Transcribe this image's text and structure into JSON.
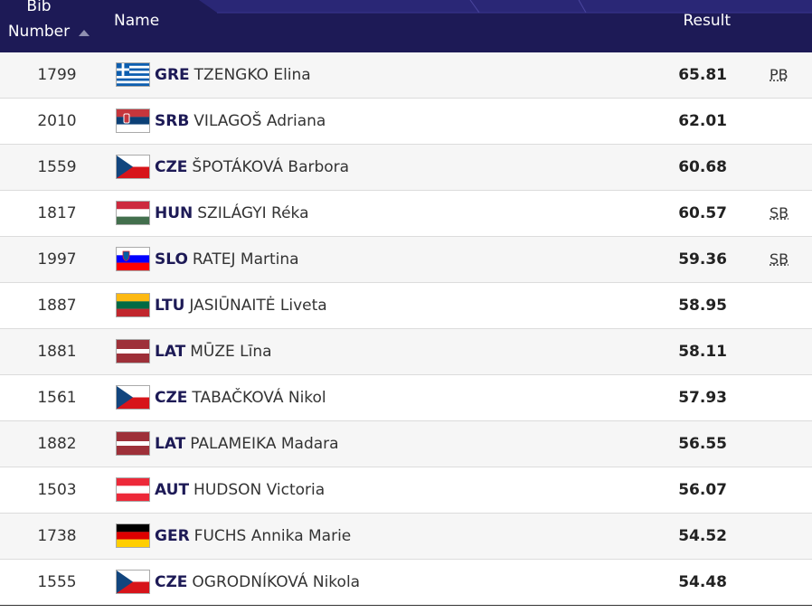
{
  "header": {
    "bib_line1": "Bib",
    "bib_line2": "Number",
    "name": "Name",
    "result": "Result"
  },
  "colors": {
    "header_bg": "#1d1a56",
    "country_code": "#1d1a56"
  },
  "rows": [
    {
      "bib": "1799",
      "country": "GRE",
      "athlete": "TZENGKO Elina",
      "result": "65.81",
      "note": "PB",
      "flag": "greece-flag-icon"
    },
    {
      "bib": "2010",
      "country": "SRB",
      "athlete": "VILAGOŠ Adriana",
      "result": "62.01",
      "note": "",
      "flag": "serbia-flag-icon"
    },
    {
      "bib": "1559",
      "country": "CZE",
      "athlete": "ŠPOTÁKOVÁ Barbora",
      "result": "60.68",
      "note": "",
      "flag": "czech-flag-icon"
    },
    {
      "bib": "1817",
      "country": "HUN",
      "athlete": "SZILÁGYI Réka",
      "result": "60.57",
      "note": "SB",
      "flag": "hungary-flag-icon"
    },
    {
      "bib": "1997",
      "country": "SLO",
      "athlete": "RATEJ Martina",
      "result": "59.36",
      "note": "SB",
      "flag": "slovenia-flag-icon"
    },
    {
      "bib": "1887",
      "country": "LTU",
      "athlete": "JASIŪNAITĖ Liveta",
      "result": "58.95",
      "note": "",
      "flag": "lithuania-flag-icon"
    },
    {
      "bib": "1881",
      "country": "LAT",
      "athlete": "MŪZE Līna",
      "result": "58.11",
      "note": "",
      "flag": "latvia-flag-icon"
    },
    {
      "bib": "1561",
      "country": "CZE",
      "athlete": "TABAČKOVÁ Nikol",
      "result": "57.93",
      "note": "",
      "flag": "czech-flag-icon"
    },
    {
      "bib": "1882",
      "country": "LAT",
      "athlete": "PALAMEIKA Madara",
      "result": "56.55",
      "note": "",
      "flag": "latvia-flag-icon"
    },
    {
      "bib": "1503",
      "country": "AUT",
      "athlete": "HUDSON Victoria",
      "result": "56.07",
      "note": "",
      "flag": "austria-flag-icon"
    },
    {
      "bib": "1738",
      "country": "GER",
      "athlete": "FUCHS Annika Marie",
      "result": "54.52",
      "note": "",
      "flag": "germany-flag-icon"
    },
    {
      "bib": "1555",
      "country": "CZE",
      "athlete": "OGRODNÍKOVÁ Nikola",
      "result": "54.48",
      "note": "",
      "flag": "czech-flag-icon"
    }
  ]
}
